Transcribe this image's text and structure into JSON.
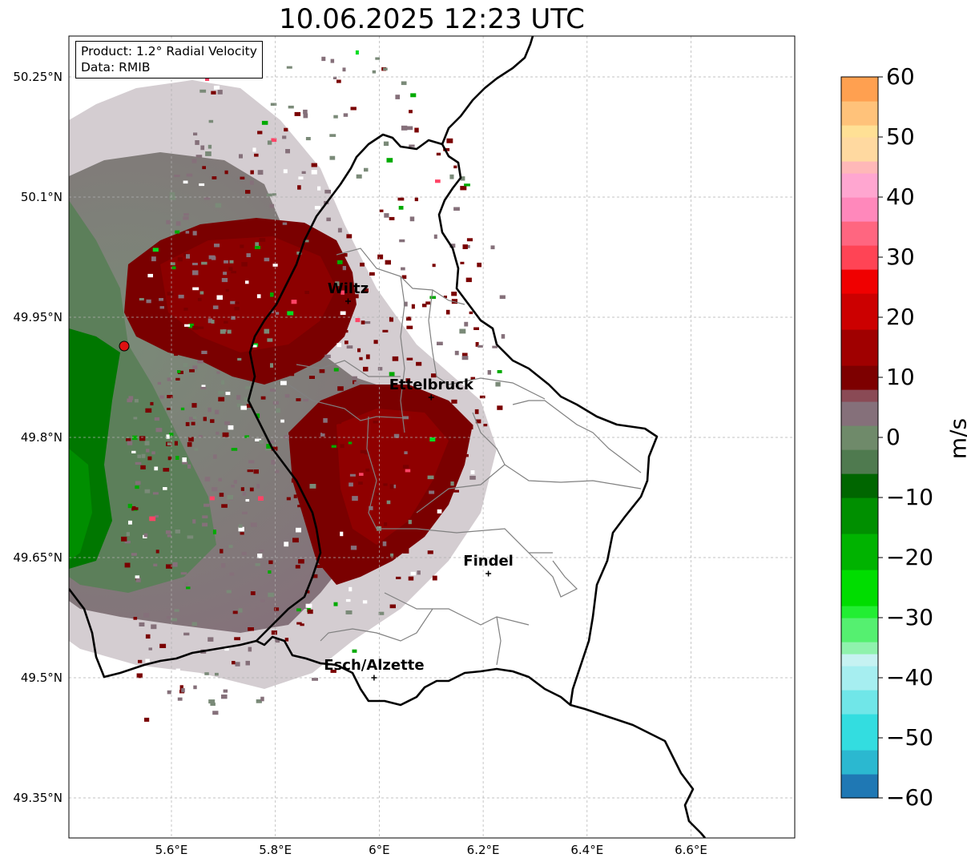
{
  "title": "10.06.2025 12:23 UTC",
  "info": {
    "product": "Product: 1.2° Radial Velocity",
    "data": "Data: RMIB"
  },
  "map": {
    "lon_range": [
      5.4,
      6.8
    ],
    "lat_range": [
      49.3,
      50.3
    ],
    "y_ticks": [
      {
        "lat": 50.25,
        "label": "50.25°N"
      },
      {
        "lat": 50.1,
        "label": "50.1°N"
      },
      {
        "lat": 49.95,
        "label": "49.95°N"
      },
      {
        "lat": 49.8,
        "label": "49.8°N"
      },
      {
        "lat": 49.65,
        "label": "49.65°N"
      },
      {
        "lat": 49.5,
        "label": "49.5°N"
      },
      {
        "lat": 49.35,
        "label": "49.35°N"
      }
    ],
    "x_ticks": [
      {
        "lon": 5.6,
        "label": "5.6°E"
      },
      {
        "lon": 5.8,
        "label": "5.8°E"
      },
      {
        "lon": 6.0,
        "label": "6°E"
      },
      {
        "lon": 6.2,
        "label": "6.2°E"
      },
      {
        "lon": 6.4,
        "label": "6.4°E"
      },
      {
        "lon": 6.6,
        "label": "6.6°E"
      }
    ],
    "grid": true,
    "cities": [
      {
        "name": "Wiltz",
        "lon": 5.94,
        "lat": 49.97
      },
      {
        "name": "Ettelbruck",
        "lon": 6.1,
        "lat": 49.85
      },
      {
        "name": "Findel",
        "lon": 6.21,
        "lat": 49.63
      },
      {
        "name": "Esch/Alzette",
        "lon": 5.99,
        "lat": 49.5
      }
    ],
    "radar_site": {
      "lon": 5.505,
      "lat": 49.915
    }
  },
  "colorbar": {
    "unit": "m/s",
    "min": -60,
    "max": 60,
    "ticks": [
      {
        "v": 60,
        "label": "60"
      },
      {
        "v": 50,
        "label": "50"
      },
      {
        "v": 40,
        "label": "40"
      },
      {
        "v": 30,
        "label": "30"
      },
      {
        "v": 20,
        "label": "20"
      },
      {
        "v": 10,
        "label": "10"
      },
      {
        "v": 0,
        "label": "0"
      },
      {
        "v": -10,
        "label": "−10"
      },
      {
        "v": -20,
        "label": "−20"
      },
      {
        "v": -30,
        "label": "−30"
      },
      {
        "v": -40,
        "label": "−40"
      },
      {
        "v": -50,
        "label": "−50"
      },
      {
        "v": -60,
        "label": "−60"
      }
    ],
    "stops": [
      {
        "from": -60,
        "to": -56,
        "color": "#1f78b4"
      },
      {
        "from": -56,
        "to": -52,
        "color": "#2bb8d0"
      },
      {
        "from": -52,
        "to": -46,
        "color": "#33dde0"
      },
      {
        "from": -46,
        "to": -42,
        "color": "#70e6e8"
      },
      {
        "from": -42,
        "to": -38,
        "color": "#a6eef0"
      },
      {
        "from": -38,
        "to": -36,
        "color": "#c6f2f2"
      },
      {
        "from": -36,
        "to": -34,
        "color": "#8ff2ad"
      },
      {
        "from": -34,
        "to": -30,
        "color": "#55f070"
      },
      {
        "from": -30,
        "to": -28,
        "color": "#22ee33"
      },
      {
        "from": -28,
        "to": -22,
        "color": "#00dd00"
      },
      {
        "from": -22,
        "to": -16,
        "color": "#00b300"
      },
      {
        "from": -16,
        "to": -10,
        "color": "#008f00"
      },
      {
        "from": -10,
        "to": -6,
        "color": "#006600"
      },
      {
        "from": -6,
        "to": -2,
        "color": "#4f7a4f"
      },
      {
        "from": -2,
        "to": 2,
        "color": "#6f8a6a"
      },
      {
        "from": 2,
        "to": 6,
        "color": "#85707a"
      },
      {
        "from": 6,
        "to": 8,
        "color": "#8a4a55"
      },
      {
        "from": 8,
        "to": 12,
        "color": "#7d0000"
      },
      {
        "from": 12,
        "to": 18,
        "color": "#a00000"
      },
      {
        "from": 18,
        "to": 24,
        "color": "#cc0000"
      },
      {
        "from": 24,
        "to": 28,
        "color": "#f00000"
      },
      {
        "from": 28,
        "to": 32,
        "color": "#ff4455"
      },
      {
        "from": 32,
        "to": 36,
        "color": "#ff6680"
      },
      {
        "from": 36,
        "to": 40,
        "color": "#ff88bb"
      },
      {
        "from": 40,
        "to": 44,
        "color": "#ffa6d0"
      },
      {
        "from": 44,
        "to": 46,
        "color": "#ffb8b8"
      },
      {
        "from": 46,
        "to": 50,
        "color": "#ffd9a0"
      },
      {
        "from": 50,
        "to": 52,
        "color": "#ffe095"
      },
      {
        "from": 52,
        "to": 56,
        "color": "#ffc27a"
      },
      {
        "from": 56,
        "to": 60,
        "color": "#ffa050"
      }
    ]
  },
  "colors": {
    "outbound_dark": "#7a0000",
    "outbound_mid": "#8f0000",
    "neutral_pos": "#85707a",
    "neutral_neg": "#6f8a6a",
    "inbound": "#007700",
    "border": "#000000",
    "canton": "#808080",
    "grid": "#b0b0b0"
  }
}
